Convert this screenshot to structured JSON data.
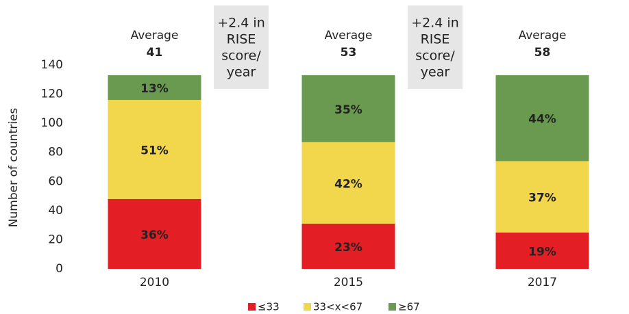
{
  "chart_data": {
    "type": "stacked_bar",
    "categories": [
      "2010",
      "2015",
      "2017"
    ],
    "y_label": "Number of countries",
    "ylim": [
      0,
      140
    ],
    "yticks": [
      0,
      20,
      40,
      60,
      80,
      100,
      120,
      140
    ],
    "series": [
      {
        "name": "≤33",
        "color": "#e31e24",
        "values": [
          48,
          31,
          25
        ],
        "value_labels": [
          "36%",
          "23%",
          "19%"
        ]
      },
      {
        "name": "33<x<67",
        "color": "#f2d64b",
        "values": [
          68,
          56,
          49
        ],
        "value_labels": [
          "51%",
          "42%",
          "37%"
        ]
      },
      {
        "name": "≥67",
        "color": "#6a9a4f",
        "values": [
          17,
          46,
          59
        ],
        "value_labels": [
          "13%",
          "35%",
          "44%"
        ]
      }
    ],
    "averages": [
      {
        "text": "Average",
        "value": 41
      },
      {
        "text": "Average",
        "value": 53
      },
      {
        "text": "Average",
        "value": 58
      }
    ],
    "annotations": [
      {
        "lines": [
          "+2.4 in",
          "RISE",
          "score/",
          "year"
        ]
      },
      {
        "lines": [
          "+2.4 in",
          "RISE",
          "score/",
          "year"
        ]
      }
    ]
  }
}
